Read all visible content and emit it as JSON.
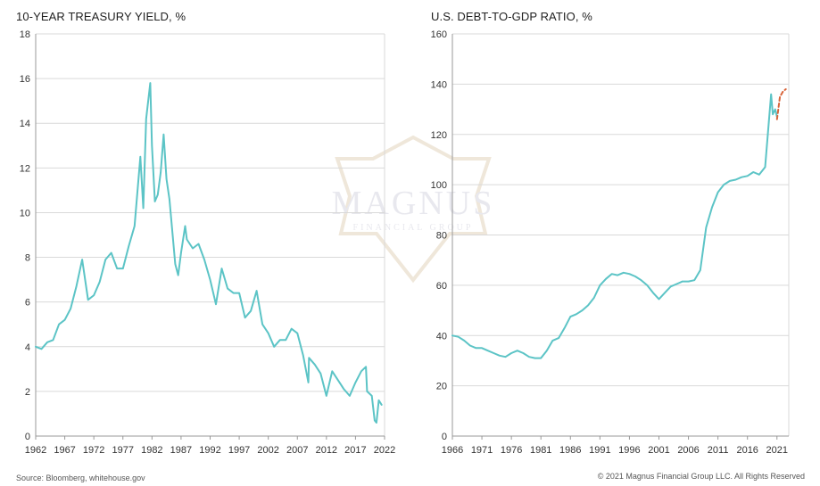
{
  "footer": {
    "source": "Source: Bloomberg, whitehouse.gov",
    "copyright": "© 2021 Magnus Financial Group LLC. All Rights Reserved"
  },
  "watermark": {
    "name": "MAGNUS",
    "sub": "FINANCIAL GROUP"
  },
  "colors": {
    "line": "#5cc4c6",
    "projection": "#d9653b",
    "grid": "#d9d9d9",
    "axis": "#999999"
  },
  "chart_data": [
    {
      "type": "line",
      "title": "10-YEAR TREASURY YIELD, %",
      "xlabel": "",
      "ylabel": "",
      "xlim": [
        1962,
        2022
      ],
      "ylim": [
        0,
        18
      ],
      "yticks": [
        0,
        2,
        4,
        6,
        8,
        10,
        12,
        14,
        16,
        18
      ],
      "xticks": [
        1962,
        1967,
        1972,
        1977,
        1982,
        1987,
        1992,
        1997,
        2002,
        2007,
        2012,
        2017,
        2022
      ],
      "grid": true,
      "series": [
        {
          "x": [
            1962,
            1963,
            1964,
            1965,
            1966,
            1967,
            1968,
            1969,
            1970,
            1971,
            1972,
            1973,
            1974,
            1975,
            1976,
            1977,
            1978,
            1979,
            1980,
            1980.5,
            1981,
            1981.7,
            1982,
            1982.5,
            1983,
            1983.5,
            1984,
            1984.5,
            1985,
            1986,
            1986.5,
            1987,
            1987.7,
            1988,
            1989,
            1990,
            1991,
            1992,
            1993,
            1994,
            1995,
            1996,
            1997,
            1998,
            1999,
            2000,
            2001,
            2002,
            2003,
            2004,
            2005,
            2006,
            2007,
            2008,
            2008.9,
            2009,
            2010,
            2011,
            2012,
            2013,
            2014,
            2015,
            2016,
            2017,
            2018,
            2018.8,
            2019,
            2019.8,
            2020.3,
            2020.6,
            2021,
            2021.5
          ],
          "y": [
            4.0,
            3.9,
            4.2,
            4.3,
            5.0,
            5.2,
            5.7,
            6.7,
            7.9,
            6.1,
            6.3,
            6.9,
            7.9,
            8.2,
            7.5,
            7.5,
            8.5,
            9.4,
            12.5,
            10.2,
            14.2,
            15.8,
            13.0,
            10.5,
            10.8,
            11.8,
            13.5,
            11.5,
            10.6,
            7.7,
            7.2,
            8.2,
            9.4,
            8.8,
            8.4,
            8.6,
            7.9,
            7.0,
            5.9,
            7.5,
            6.6,
            6.4,
            6.4,
            5.3,
            5.6,
            6.5,
            5.0,
            4.6,
            4.0,
            4.3,
            4.3,
            4.8,
            4.6,
            3.6,
            2.4,
            3.5,
            3.2,
            2.8,
            1.8,
            2.9,
            2.5,
            2.1,
            1.8,
            2.4,
            2.9,
            3.1,
            2.0,
            1.8,
            0.7,
            0.6,
            1.6,
            1.4
          ]
        }
      ]
    },
    {
      "type": "line",
      "title": "U.S. DEBT-TO-GDP RATIO, %",
      "xlabel": "",
      "ylabel": "",
      "xlim": [
        1966,
        2023
      ],
      "ylim": [
        0,
        160
      ],
      "yticks": [
        0,
        20,
        40,
        60,
        80,
        100,
        120,
        140,
        160
      ],
      "xticks": [
        1966,
        1971,
        1976,
        1981,
        1986,
        1991,
        1996,
        2001,
        2006,
        2011,
        2016,
        2021
      ],
      "grid": true,
      "series": [
        {
          "x": [
            1966,
            1967,
            1968,
            1969,
            1970,
            1971,
            1972,
            1973,
            1974,
            1975,
            1976,
            1977,
            1978,
            1979,
            1980,
            1981,
            1982,
            1983,
            1984,
            1985,
            1986,
            1987,
            1988,
            1989,
            1990,
            1991,
            1992,
            1993,
            1994,
            1995,
            1996,
            1997,
            1998,
            1999,
            2000,
            2001,
            2002,
            2003,
            2004,
            2005,
            2006,
            2007,
            2008,
            2009,
            2010,
            2011,
            2012,
            2013,
            2014,
            2015,
            2016,
            2017,
            2018,
            2019,
            2020,
            2020.3,
            2020.7,
            2021
          ],
          "y": [
            40,
            39.5,
            38,
            36,
            35,
            35,
            34,
            33,
            32,
            31.5,
            33,
            34,
            33,
            31.5,
            31,
            31,
            34,
            38,
            39,
            43,
            47.5,
            48.5,
            50,
            52,
            55,
            60,
            62.5,
            64.5,
            64,
            65,
            64.5,
            63.5,
            62,
            60,
            57,
            54.5,
            57,
            59.5,
            60.5,
            61.5,
            61.5,
            62,
            66,
            83,
            91,
            97,
            100,
            101.5,
            102,
            103,
            103.5,
            105,
            104,
            107,
            136,
            128,
            130,
            127
          ]
        },
        {
          "x": [
            2021,
            2021.5,
            2022,
            2022.5
          ],
          "y": [
            126,
            135,
            137,
            138
          ]
        }
      ]
    }
  ]
}
